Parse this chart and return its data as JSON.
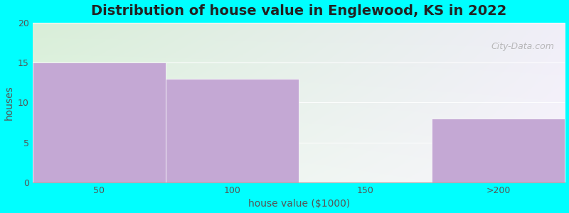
{
  "categories": [
    "50",
    "100",
    "150",
    ">200"
  ],
  "values": [
    15,
    13,
    0,
    8
  ],
  "bar_color": "#c4a8d4",
  "title": "Distribution of house value in Englewood, KS in 2022",
  "xlabel": "house value ($1000)",
  "ylabel": "houses",
  "ylim": [
    0,
    20
  ],
  "yticks": [
    0,
    5,
    10,
    15,
    20
  ],
  "background_outer": "#00ffff",
  "bg_top_left": "#d8eed8",
  "bg_top_right": "#e8eef8",
  "bg_bottom_left": "#e8f8e8",
  "bg_bottom_right": "#f8f0f8",
  "grid_color": "#d0d0d0",
  "watermark": "City-Data.com",
  "title_fontsize": 14,
  "label_fontsize": 10,
  "figsize": [
    8.0,
    3.0
  ],
  "dpi": 100
}
